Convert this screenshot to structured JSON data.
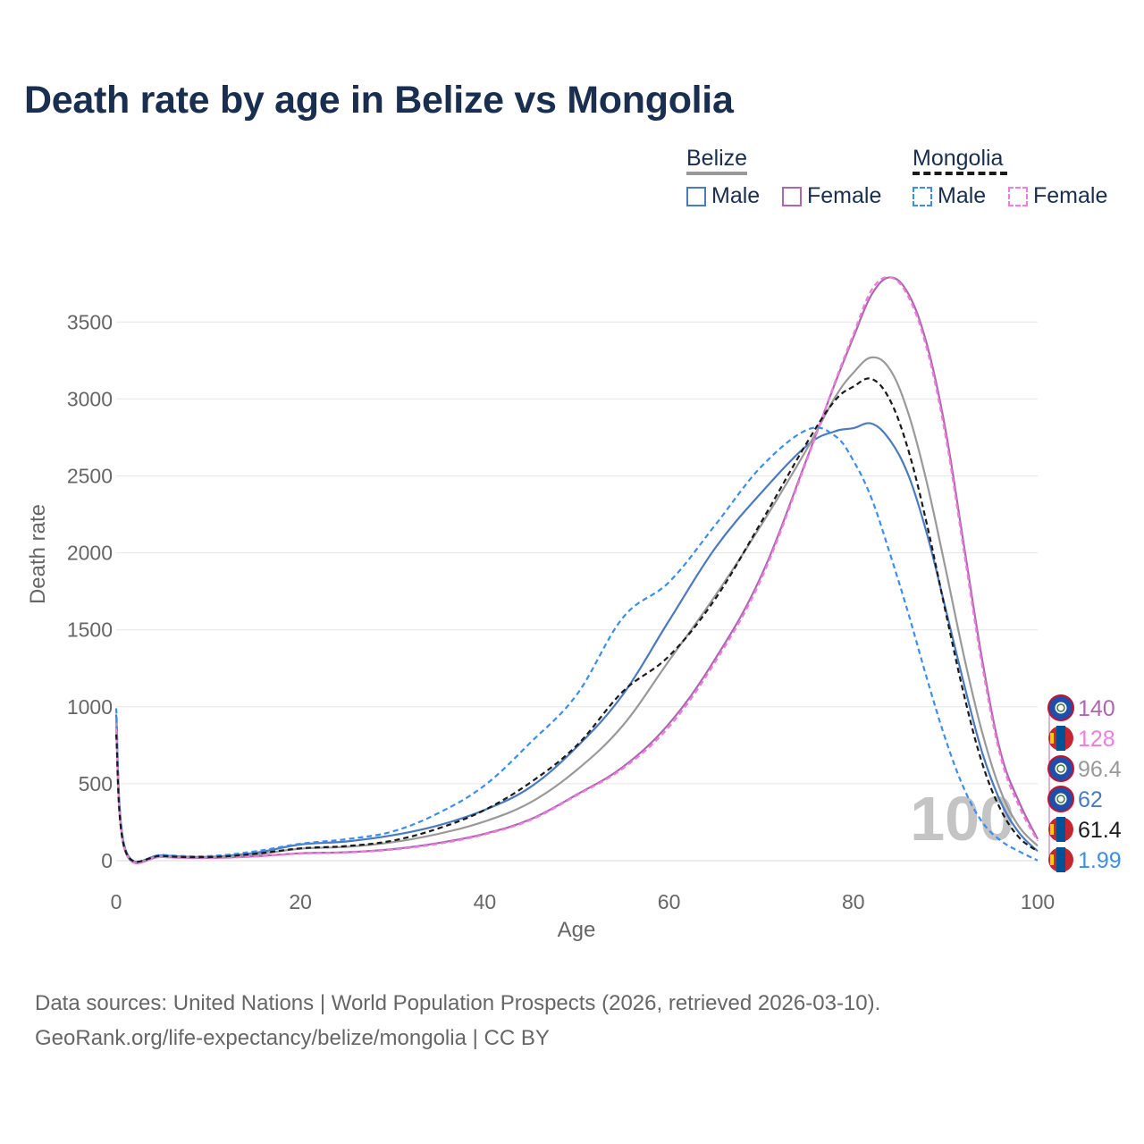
{
  "title": "Death rate by age in Belize vs Mongolia",
  "legend": {
    "groups": [
      {
        "name": "Belize",
        "items": [
          "Male",
          "Female"
        ]
      },
      {
        "name": "Mongolia",
        "items": [
          "Male",
          "Female"
        ]
      }
    ]
  },
  "colors": {
    "belize_male": "#4a7abf",
    "belize_female": "#b065b0",
    "belize_total": "#999999",
    "mongolia_male": "#3b8ef0",
    "mongolia_female": "#f07ce0",
    "mongolia_total": "#1a1a1a",
    "grid": "#e6e6e6",
    "axis_text": "#666666",
    "title": "#1a2e4f"
  },
  "watermark": "100",
  "end_labels": [
    "140",
    "128",
    "96.4",
    "62",
    "61.4",
    "1.99"
  ],
  "source": {
    "line1": "Data sources: United Nations | World Population Prospects (2026, retrieved 2026-03-10).",
    "line2": "GeoRank.org/life-expectancy/belize/mongolia | CC BY"
  },
  "chart_data": {
    "type": "line",
    "title": "Death rate by age in Belize vs Mongolia",
    "xlabel": "Age",
    "ylabel": "Death rate",
    "xlim": [
      0,
      100
    ],
    "ylim": [
      0,
      3800
    ],
    "xticks": [
      0,
      20,
      40,
      60,
      80,
      100
    ],
    "yticks": [
      0,
      500,
      1000,
      1500,
      2000,
      2500,
      3000,
      3500
    ],
    "grid": true,
    "legend_position": "top-right",
    "x": [
      0,
      1,
      5,
      10,
      15,
      20,
      25,
      30,
      35,
      40,
      45,
      50,
      55,
      60,
      65,
      70,
      75,
      78,
      80,
      82,
      84,
      86,
      88,
      90,
      92,
      94,
      96,
      98,
      100
    ],
    "series": [
      {
        "name": "Belize Male",
        "country": "Belize",
        "sex": "Male",
        "style": "solid",
        "color_key": "belize_male",
        "end_label": "62",
        "values": [
          950,
          75,
          35,
          25,
          50,
          105,
          125,
          165,
          230,
          330,
          480,
          740,
          1080,
          1560,
          2030,
          2390,
          2700,
          2790,
          2810,
          2840,
          2730,
          2500,
          2120,
          1640,
          1150,
          700,
          380,
          180,
          62
        ]
      },
      {
        "name": "Belize Female",
        "country": "Belize",
        "sex": "Female",
        "style": "solid",
        "color_key": "belize_female",
        "end_label": "140",
        "values": [
          870,
          60,
          25,
          18,
          28,
          48,
          55,
          75,
          115,
          175,
          270,
          430,
          610,
          890,
          1310,
          1850,
          2620,
          3100,
          3400,
          3680,
          3790,
          3680,
          3350,
          2800,
          2050,
          1300,
          700,
          380,
          140
        ]
      },
      {
        "name": "Belize Total",
        "country": "Belize",
        "sex": "Total",
        "style": "solid",
        "color_key": "belize_total",
        "end_label": "96.4",
        "values": [
          910,
          68,
          30,
          22,
          40,
          78,
          90,
          120,
          175,
          255,
          380,
          590,
          880,
          1300,
          1720,
          2180,
          2680,
          3010,
          3170,
          3270,
          3190,
          2900,
          2450,
          1900,
          1330,
          830,
          450,
          220,
          96.4
        ]
      },
      {
        "name": "Mongolia Male",
        "country": "Mongolia",
        "sex": "Male",
        "style": "dashed",
        "color_key": "mongolia_male",
        "end_label": "1.99",
        "values": [
          990,
          70,
          38,
          30,
          60,
          110,
          140,
          190,
          310,
          490,
          770,
          1080,
          1580,
          1810,
          2180,
          2560,
          2800,
          2760,
          2600,
          2350,
          1990,
          1600,
          1180,
          790,
          470,
          250,
          130,
          60,
          1.99
        ]
      },
      {
        "name": "Mongolia Female",
        "country": "Mongolia",
        "sex": "Female",
        "style": "dashed",
        "color_key": "mongolia_female",
        "end_label": "128",
        "values": [
          860,
          58,
          24,
          17,
          27,
          46,
          53,
          72,
          110,
          170,
          265,
          425,
          600,
          870,
          1290,
          1830,
          2610,
          3110,
          3420,
          3710,
          3790,
          3660,
          3320,
          2760,
          2010,
          1260,
          670,
          350,
          128
        ]
      },
      {
        "name": "Mongolia Total",
        "country": "Mongolia",
        "sex": "Total",
        "style": "dashed",
        "color_key": "mongolia_total",
        "end_label": "61.4",
        "values": [
          820,
          64,
          31,
          23,
          44,
          80,
          95,
          130,
          210,
          330,
          510,
          750,
          1100,
          1330,
          1700,
          2200,
          2720,
          2990,
          3080,
          3130,
          2990,
          2660,
          2180,
          1620,
          1080,
          630,
          330,
          150,
          61.4
        ]
      }
    ]
  }
}
